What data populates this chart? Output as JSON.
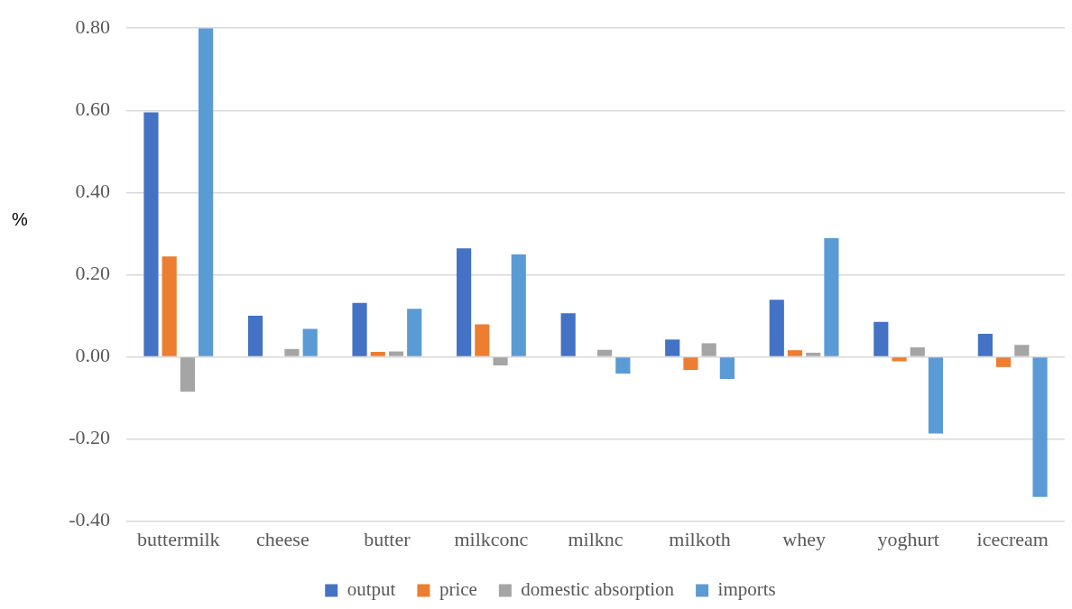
{
  "chart_data": {
    "type": "bar",
    "ylabel": "%",
    "categories": [
      "buttermilk",
      "cheese",
      "butter",
      "milkconc",
      "milknc",
      "milkoth",
      "whey",
      "yoghurt",
      "icecream"
    ],
    "series": [
      {
        "name": "output",
        "color": "#4472c4",
        "values": [
          0.595,
          0.1,
          0.131,
          0.264,
          0.106,
          0.042,
          0.139,
          0.085,
          0.056
        ]
      },
      {
        "name": "price",
        "color": "#ed7d31",
        "values": [
          0.244,
          0,
          0.012,
          0.079,
          0,
          -0.032,
          0.016,
          -0.011,
          -0.025
        ]
      },
      {
        "name": "domestic absorption",
        "color": "#a5a5a5",
        "values": [
          -0.085,
          0.019,
          0.013,
          -0.021,
          0.017,
          0.033,
          0.01,
          0.023,
          0.029
        ]
      },
      {
        "name": "imports",
        "color": "#5b9bd5",
        "values": [
          0.8,
          0.068,
          0.117,
          0.249,
          -0.041,
          -0.054,
          0.289,
          -0.187,
          -0.341
        ]
      }
    ],
    "ylim": [
      -0.4,
      0.8
    ],
    "yticks": [
      {
        "value": -0.4,
        "label": "-0.40"
      },
      {
        "value": -0.2,
        "label": "-0.20"
      },
      {
        "value": 0,
        "label": "0.00"
      },
      {
        "value": 0.2,
        "label": "0.20"
      },
      {
        "value": 0.4,
        "label": "0.40"
      },
      {
        "value": 0.6,
        "label": "0.60"
      },
      {
        "value": 0.8,
        "label": "0.80"
      }
    ],
    "grid": "y",
    "legend": "bottom"
  }
}
